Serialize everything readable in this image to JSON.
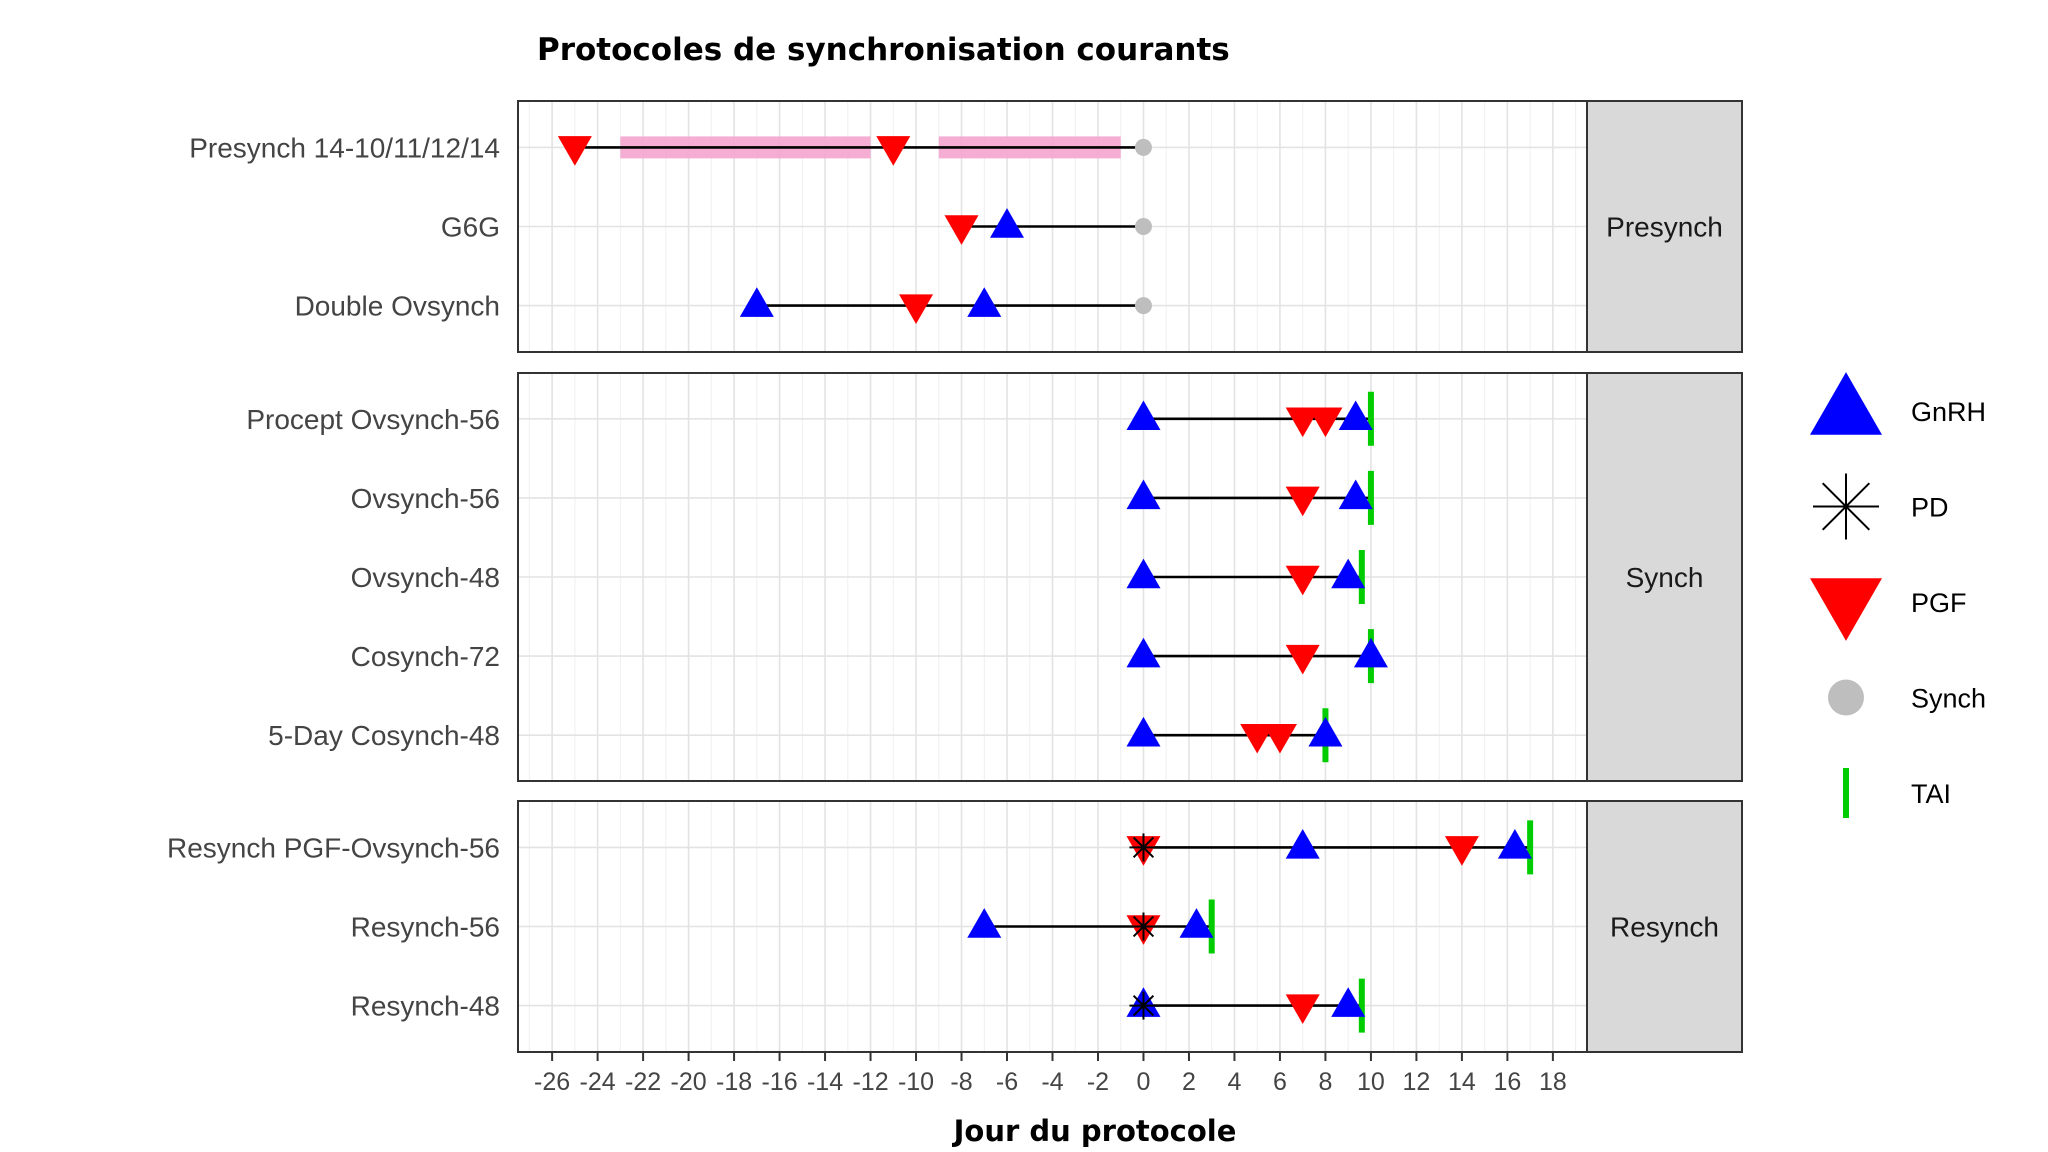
{
  "chart_data": {
    "type": "scatter",
    "title": "Protocoles de synchronisation courants",
    "xlabel": "Jour du protocole",
    "xlim": [
      -27.5,
      19.5
    ],
    "x_ticks": [
      -26,
      -24,
      -22,
      -20,
      -18,
      -16,
      -14,
      -12,
      -10,
      -8,
      -6,
      -4,
      -2,
      0,
      2,
      4,
      6,
      8,
      10,
      12,
      14,
      16,
      18
    ],
    "grid": true,
    "legend_position": "right",
    "legend": [
      {
        "key": "gnrh",
        "label": "GnRH",
        "shape": "triangle-up",
        "color": "#0000ff"
      },
      {
        "key": "pd",
        "label": "PD",
        "shape": "asterisk",
        "color": "#000000"
      },
      {
        "key": "pgf",
        "label": "PGF",
        "shape": "triangle-down",
        "color": "#ff0000"
      },
      {
        "key": "synch",
        "label": "Synch",
        "shape": "circle",
        "color": "#bebebe"
      },
      {
        "key": "tai",
        "label": "TAI",
        "shape": "vbar",
        "color": "#00cc00"
      }
    ],
    "panels": [
      {
        "strip": "Presynch",
        "rows": [
          {
            "label": "Presynch 14-10/11/12/14",
            "start": -25,
            "end": 0,
            "bands": [
              [
                -23,
                -12
              ],
              [
                -9,
                -1
              ]
            ],
            "pgf": [
              -25,
              -11
            ],
            "gnrh": [],
            "pd": [],
            "synch": [
              0
            ],
            "tai": []
          },
          {
            "label": "G6G",
            "start": -8,
            "end": 0,
            "bands": [],
            "pgf": [
              -8
            ],
            "gnrh": [
              -6
            ],
            "pd": [],
            "synch": [
              0
            ],
            "tai": []
          },
          {
            "label": "Double Ovsynch",
            "start": -17,
            "end": 0,
            "bands": [],
            "pgf": [
              -10
            ],
            "gnrh": [
              -17,
              -7
            ],
            "pd": [],
            "synch": [
              0
            ],
            "tai": []
          }
        ]
      },
      {
        "strip": "Synch",
        "rows": [
          {
            "label": "Procept Ovsynch-56",
            "start": 0,
            "end": 10,
            "bands": [],
            "pgf": [
              7,
              8
            ],
            "gnrh": [
              0,
              9.33
            ],
            "pd": [],
            "synch": [],
            "tai": [
              10
            ]
          },
          {
            "label": "Ovsynch-56",
            "start": 0,
            "end": 10,
            "bands": [],
            "pgf": [
              7
            ],
            "gnrh": [
              0,
              9.33
            ],
            "pd": [],
            "synch": [],
            "tai": [
              10
            ]
          },
          {
            "label": "Ovsynch-48",
            "start": 0,
            "end": 9.6,
            "bands": [],
            "pgf": [
              7
            ],
            "gnrh": [
              0,
              9
            ],
            "pd": [],
            "synch": [],
            "tai": [
              9.6
            ]
          },
          {
            "label": "Cosynch-72",
            "start": 0,
            "end": 10,
            "bands": [],
            "pgf": [
              7
            ],
            "gnrh": [
              0,
              10
            ],
            "pd": [],
            "synch": [],
            "tai": [
              10
            ]
          },
          {
            "label": "5-Day Cosynch-48",
            "start": 0,
            "end": 8,
            "bands": [],
            "pgf": [
              5,
              6
            ],
            "gnrh": [
              0,
              8
            ],
            "pd": [],
            "synch": [],
            "tai": [
              8
            ]
          }
        ]
      },
      {
        "strip": "Resynch",
        "rows": [
          {
            "label": "Resynch PGF-Ovsynch-56",
            "start": 0,
            "end": 17,
            "bands": [],
            "pgf": [
              0,
              14
            ],
            "gnrh": [
              7,
              16.33
            ],
            "pd": [
              0
            ],
            "synch": [],
            "tai": [
              17
            ]
          },
          {
            "label": "Resynch-56",
            "start": -7,
            "end": 3,
            "bands": [],
            "pgf": [
              0
            ],
            "gnrh": [
              -7,
              2.33
            ],
            "pd": [
              0
            ],
            "synch": [],
            "tai": [
              3
            ]
          },
          {
            "label": "Resynch-48",
            "start": 0,
            "end": 9.6,
            "bands": [],
            "pgf": [
              7
            ],
            "gnrh": [
              0,
              9
            ],
            "pd": [
              0
            ],
            "synch": [],
            "tai": [
              9.6
            ]
          }
        ]
      }
    ]
  }
}
